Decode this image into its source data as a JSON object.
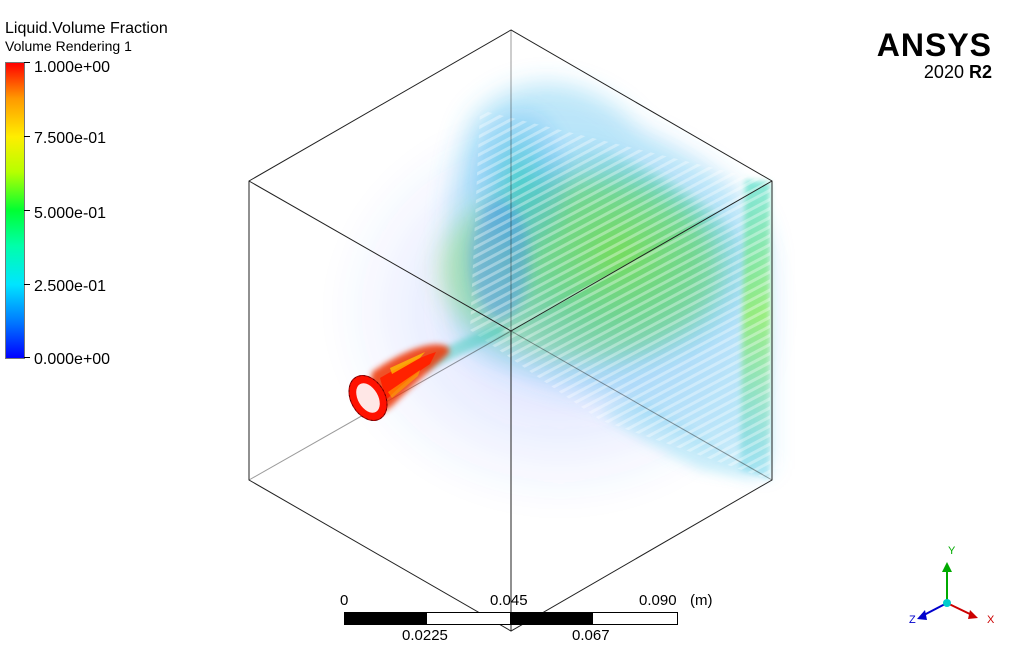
{
  "legend": {
    "title": "Liquid.Volume Fraction",
    "subtitle": "Volume Rendering 1",
    "ticks": [
      "1.000e+00",
      "7.500e-01",
      "5.000e-01",
      "2.500e-01",
      "0.000e+00"
    ],
    "range": [
      0,
      1
    ]
  },
  "logo": {
    "brand": "ANSYS",
    "year": "2020",
    "release": "R2"
  },
  "scale_bar": {
    "top_labels": [
      "0",
      "0.045",
      "0.090"
    ],
    "bottom_labels": [
      "0.0225",
      "0.067"
    ],
    "unit": "(m)"
  },
  "triad": {
    "y": "Y",
    "z": "Z",
    "x": "X"
  },
  "colors": {
    "triad_y": "#00aa00",
    "triad_z": "#0000cc",
    "triad_x": "#cc0000",
    "triad_origin": "#00cccc"
  }
}
